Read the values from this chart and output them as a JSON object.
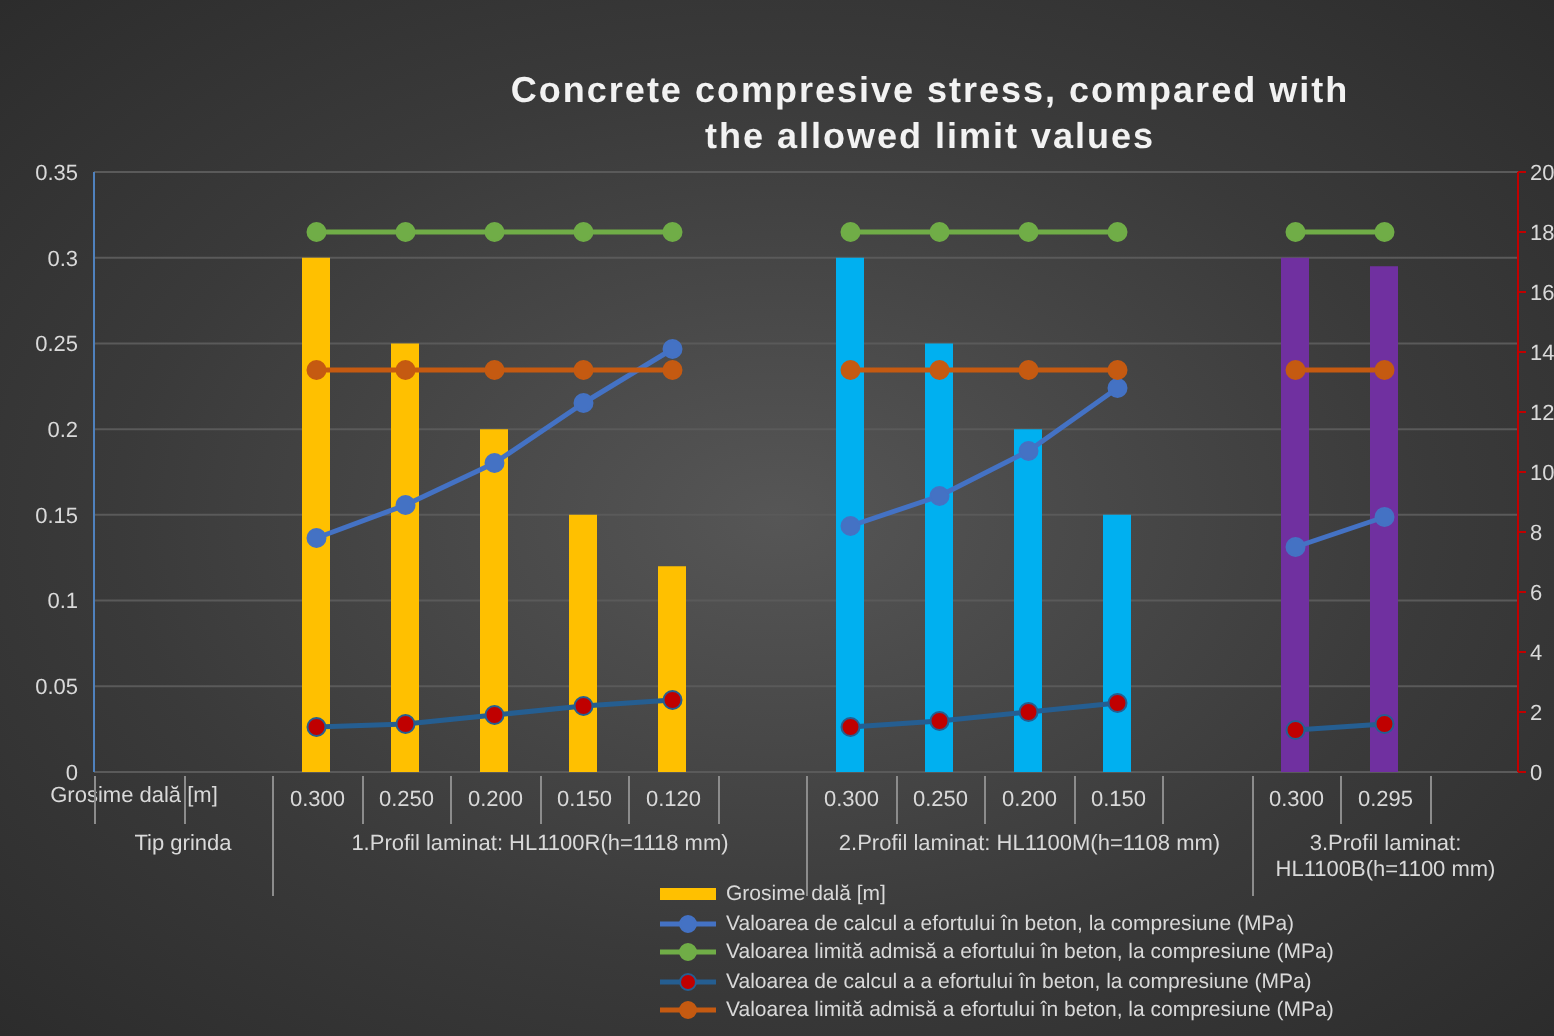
{
  "chart_data": {
    "type": "bar",
    "title": "Concrete compresive stress, compared with the allowed limit values",
    "categories": [
      null,
      null,
      null,
      null,
      null,
      null,
      null,
      null,
      null,
      null,
      null,
      null,
      null,
      null,
      null,
      null
    ],
    "series": [
      {
        "name": "Grosime dală [m]",
        "color": "#ffc000",
        "colors": [
          null,
          null,
          "#ffc000",
          "#ffc000",
          "#ffc000",
          "#ffc000",
          "#ffc000",
          null,
          "#00b0f0",
          "#00b0f0",
          "#00b0f0",
          "#00b0f0",
          null,
          "#7030a0",
          "#7030a0",
          null
        ],
        "values": [
          null,
          null,
          0.3,
          0.25,
          0.2,
          0.15,
          0.12,
          null,
          0.3,
          0.25,
          0.2,
          0.15,
          null,
          0.3,
          0.295,
          null
        ],
        "value_labels": [
          null,
          null,
          "0.300",
          "0.250",
          "0.200",
          "0.150",
          "0.120",
          null,
          "0.300",
          "0.250",
          "0.200",
          "0.150",
          null,
          "0.300",
          "0.295",
          null
        ]
      },
      {
        "name": "Valoarea de calcul a efortului în beton, la compresiune (MPa)",
        "type": "line",
        "axis": "y2",
        "color": "#4472c4",
        "values": [
          null,
          null,
          7.8,
          8.9,
          10.3,
          12.3,
          14.1,
          null,
          8.2,
          9.2,
          10.7,
          12.8,
          null,
          7.5,
          8.5,
          null
        ]
      },
      {
        "name": "Valoarea limită admisă a efortului în beton, la compresiune (MPa)",
        "type": "line",
        "axis": "y2",
        "color": "#70ad47",
        "values": [
          null,
          null,
          18,
          18,
          18,
          18,
          18,
          null,
          18,
          18,
          18,
          18,
          null,
          18,
          18,
          null
        ]
      },
      {
        "name": "Valoarea de calcul a a efortului în beton, la compresiune (MPa)",
        "type": "line",
        "axis": "y2",
        "color": "#255e91",
        "values": [
          null,
          null,
          1.5,
          1.6,
          1.9,
          2.2,
          2.4,
          null,
          1.5,
          1.7,
          2.0,
          2.3,
          null,
          1.4,
          1.6,
          null
        ]
      },
      {
        "name": "Valoarea limită admisă a efortului în beton, la compresiune (MPa)",
        "type": "line",
        "axis": "y2",
        "color": "#c55a11",
        "values": [
          null,
          null,
          13.4,
          13.4,
          13.4,
          13.4,
          13.4,
          null,
          13.4,
          13.4,
          13.4,
          13.4,
          null,
          13.4,
          13.4,
          null
        ]
      }
    ],
    "annotations": [
      "Tip grinda",
      "1.Profil laminat: HL1100R(h=1118 mm)",
      "2.Profil laminat: HL1100M(h=1108 mm)",
      "3.Profil laminat: HL1100B(h=1100 mm)"
    ],
    "ylim": [
      0,
      0.35
    ],
    "yticks": [
      0,
      0.05,
      0.1,
      0.15,
      0.2,
      0.25,
      0.3,
      0.35
    ],
    "y2lim": [
      0,
      20
    ],
    "y2ticks": [
      0,
      2,
      4,
      6,
      8,
      10,
      12,
      14,
      16,
      18,
      20
    ],
    "grid": "y",
    "legend": "bottom",
    "marker": "circle",
    "line_style": "solid"
  }
}
